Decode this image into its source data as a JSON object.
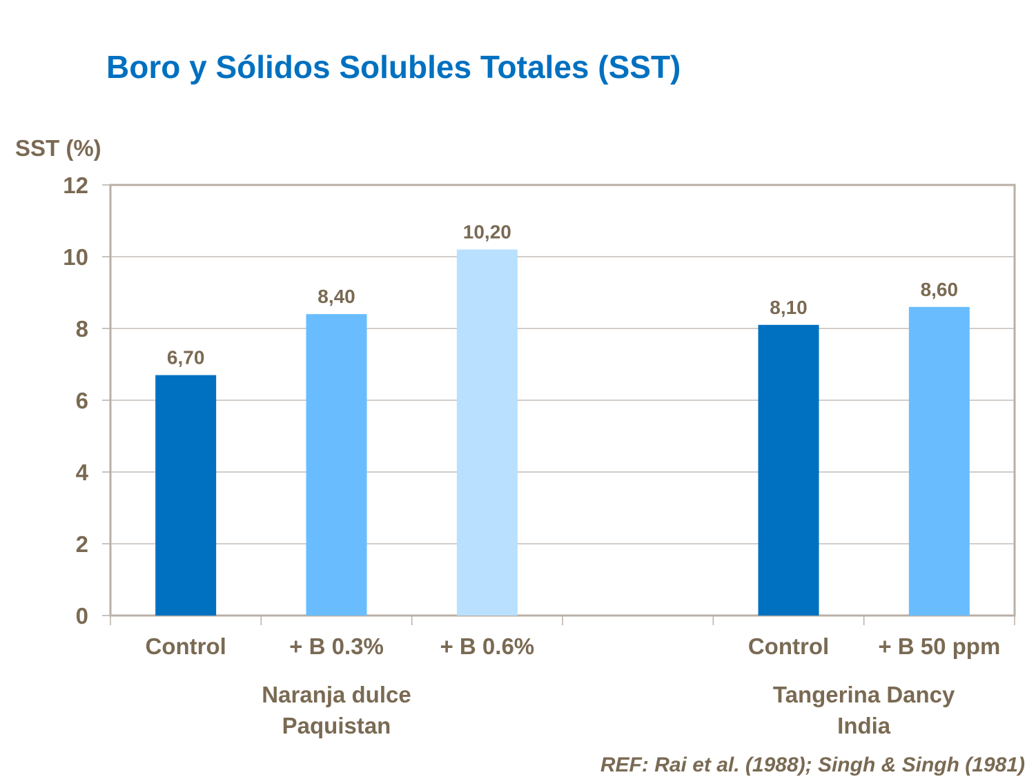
{
  "chart_data": {
    "type": "bar",
    "title": "Boro y Sólidos Solubles Totales (SST)",
    "ylabel": "SST (%)",
    "xlabel": "",
    "ylim": [
      0,
      12
    ],
    "yticks": [
      "0",
      "2",
      "4",
      "6",
      "8",
      "10",
      "12"
    ],
    "grid": true,
    "categories": [
      "Control",
      "+ B 0.3%",
      "+ B 0.6%",
      "",
      "Control",
      "+ B 50 ppm"
    ],
    "values": [
      6.7,
      8.4,
      10.2,
      null,
      8.1,
      8.6
    ],
    "data_labels": [
      "6,70",
      "8,40",
      "10,20",
      "",
      "8,10",
      "8,60"
    ],
    "bar_colors": [
      "#0070C0",
      "#69BDFF",
      "#B9E0FF",
      "",
      "#0070C0",
      "#69BDFF"
    ],
    "groups": [
      {
        "label_line1": "Naranja dulce",
        "label_line2": "Paquistan"
      },
      {
        "label_line1": "Tangerina Dancy",
        "label_line2": "India"
      }
    ],
    "reference": "REF: Rai et al. (1988); Singh & Singh (1981)"
  }
}
